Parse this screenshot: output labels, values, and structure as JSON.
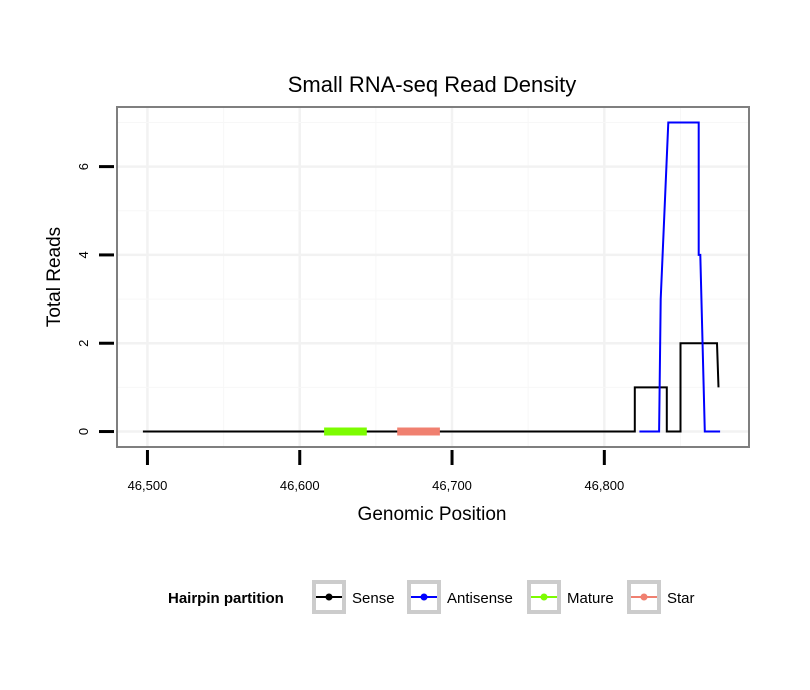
{
  "chart_data": {
    "type": "line",
    "title": "Small RNA-seq Read Density",
    "xlabel": "Genomic Position",
    "ylabel": "Total Reads",
    "xlim": [
      46480,
      46895
    ],
    "ylim": [
      -0.35,
      7.35
    ],
    "x_ticks": [
      46500,
      46600,
      46700,
      46800
    ],
    "x_tick_labels": [
      "46,500",
      "46,600",
      "46,700",
      "46,800"
    ],
    "y_ticks": [
      0,
      2,
      4,
      6
    ],
    "y_tick_labels": [
      "0",
      "2",
      "4",
      "6"
    ],
    "grid": true,
    "legend": {
      "title": "Hairpin partition",
      "position": "bottom",
      "entries": [
        "Sense",
        "Antisense",
        "Mature",
        "Star"
      ]
    },
    "series": [
      {
        "name": "Sense",
        "color": "#000000",
        "x": [
          46497,
          46820,
          46820,
          46841,
          46841,
          46850,
          46850,
          46874,
          46875
        ],
        "y": [
          0,
          0,
          1,
          1,
          0,
          0,
          2,
          2,
          1
        ]
      },
      {
        "name": "Antisense",
        "color": "#0000ff",
        "x": [
          46823,
          46836,
          46837,
          46842,
          46862,
          46862,
          46863,
          46866,
          46876
        ],
        "y": [
          0,
          0,
          3,
          7,
          7,
          4,
          4,
          0,
          0
        ]
      },
      {
        "name": "Mature",
        "color": "#7cfc00",
        "x": [
          46616,
          46644
        ],
        "y": [
          0,
          0
        ]
      },
      {
        "name": "Star",
        "color": "#f08070",
        "x": [
          46664,
          46692
        ],
        "y": [
          0,
          0
        ]
      }
    ]
  }
}
